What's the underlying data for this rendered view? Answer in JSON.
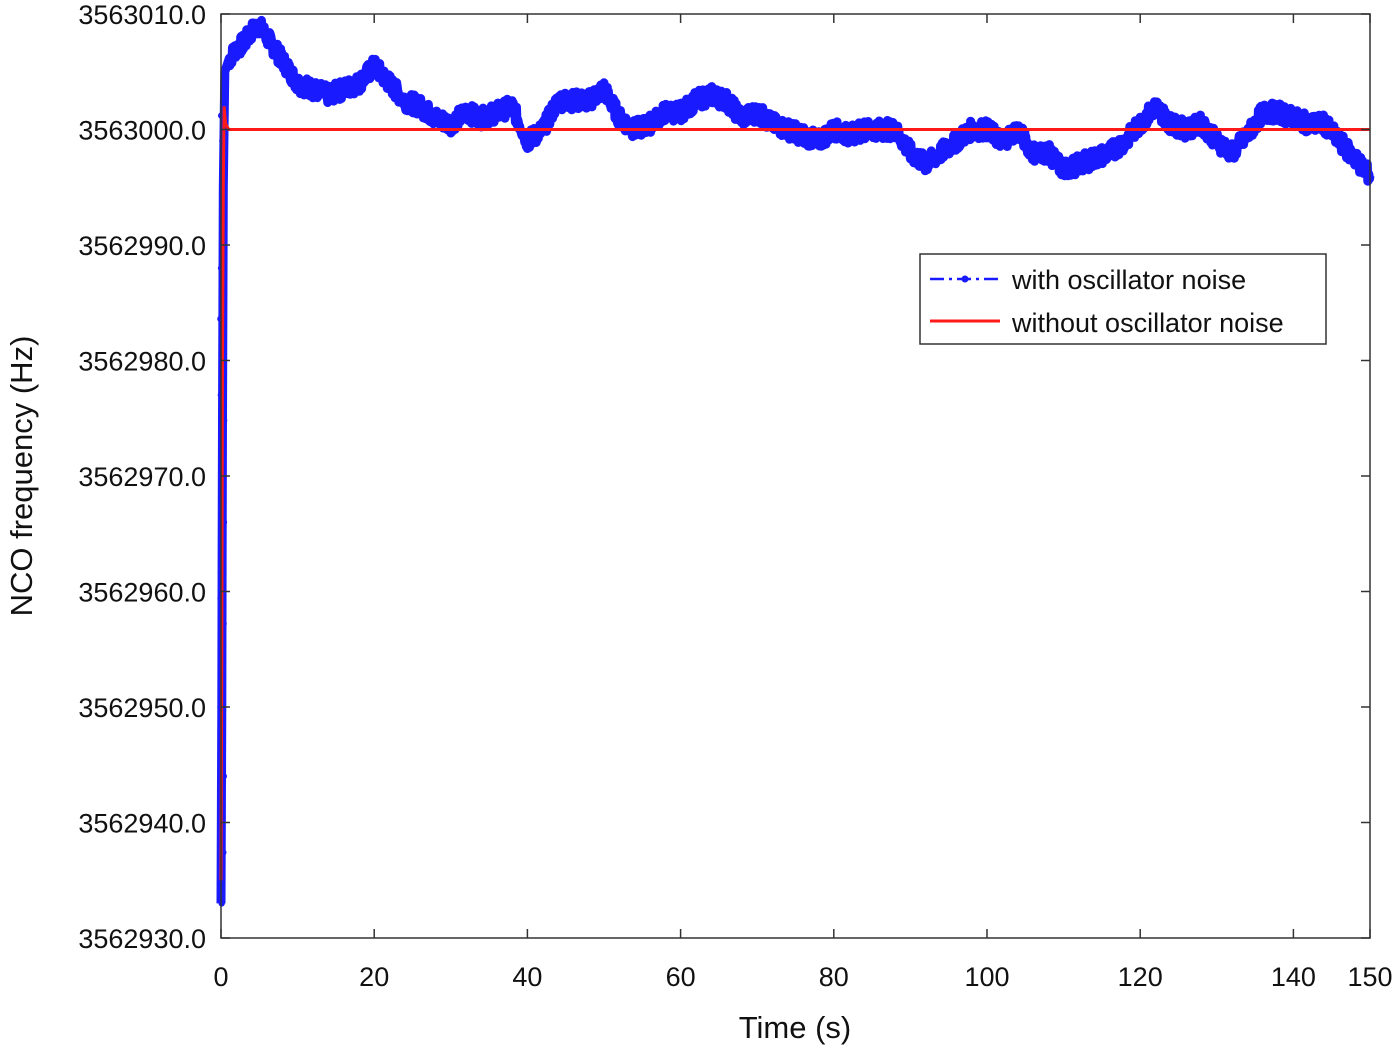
{
  "chart_data": {
    "type": "line",
    "xlabel": "Time (s)",
    "ylabel": "NCO frequency (Hz)",
    "xlim": [
      0,
      150
    ],
    "ylim": [
      3562930,
      3563010
    ],
    "xticks": [
      0,
      20,
      40,
      60,
      80,
      100,
      120,
      140,
      150
    ],
    "xtick_labels": [
      "0",
      "20",
      "40",
      "60",
      "80",
      "100",
      "120",
      "140",
      "150"
    ],
    "yticks": [
      3562930,
      3562940,
      3562950,
      3562960,
      3562970,
      3562980,
      3562990,
      3563000,
      3563010
    ],
    "ytick_labels": [
      "3562930.0",
      "3562940.0",
      "3562950.0",
      "3562960.0",
      "3562970.0",
      "3562980.0",
      "3562990.0",
      "3563000.0",
      "3563010.0"
    ],
    "grid": false,
    "legend_position": "top-right",
    "series": [
      {
        "name": "with oscillator noise",
        "color": "#1a1aff",
        "marker": "dot",
        "style": "dash-dot",
        "x": [
          0,
          0.1,
          0.2,
          0.3,
          0.5,
          1,
          2,
          3,
          4,
          5,
          6,
          8,
          10,
          12,
          14,
          16,
          18,
          20,
          22,
          24,
          26,
          28,
          30,
          32,
          34,
          36,
          38,
          40,
          42,
          44,
          46,
          48,
          50,
          52,
          54,
          56,
          58,
          60,
          62,
          64,
          66,
          68,
          70,
          72,
          74,
          76,
          78,
          80,
          82,
          84,
          86,
          88,
          90,
          92,
          94,
          96,
          98,
          100,
          102,
          104,
          106,
          108,
          110,
          112,
          114,
          116,
          118,
          120,
          122,
          124,
          126,
          128,
          130,
          132,
          134,
          136,
          138,
          140,
          142,
          144,
          146,
          148,
          150
        ],
        "y": [
          3562933,
          3562950,
          3562975,
          3562995,
          3563005,
          3563006,
          3563007,
          3563007.5,
          3563008.5,
          3563009,
          3563008,
          3563006,
          3563004,
          3563003.5,
          3563003,
          3563003.5,
          3563004,
          3563005.5,
          3563004,
          3563002.5,
          3563002,
          3563001,
          3563000.5,
          3563001.5,
          3563001,
          3563001.5,
          3563002,
          3562999,
          3563000,
          3563002.5,
          3563002.5,
          3563002.5,
          3563003.5,
          3563001,
          3563000,
          3563000.5,
          3563001.5,
          3563001.5,
          3563002.5,
          3563003,
          3563002.5,
          3563001,
          3563001.5,
          3563000.5,
          3563000,
          3562999.5,
          3562999,
          3563000,
          3562999.5,
          3563000,
          3563000,
          3563000,
          3562998,
          3562997,
          3562998,
          3562999,
          3563000,
          3563000,
          3562999,
          3563000,
          3562998,
          3562998,
          3562996.5,
          3562997,
          3562997.5,
          3562998,
          3562999,
          3563000.5,
          3563002,
          3563000.5,
          3563000,
          3563000.5,
          3562999,
          3562998,
          3562999.5,
          3563001.5,
          3563001.5,
          3563001,
          3563000.5,
          3563000.5,
          3562999,
          3562997.5,
          3562996
        ]
      },
      {
        "name": "without oscillator noise",
        "color": "#ff1a1a",
        "marker": "none",
        "style": "solid",
        "x": [
          0,
          0.1,
          0.2,
          0.3,
          0.4,
          0.6,
          1,
          150
        ],
        "y": [
          3562935,
          3562955,
          3562980,
          3562995,
          3563002,
          3563000.5,
          3563000,
          3563000
        ]
      }
    ]
  }
}
